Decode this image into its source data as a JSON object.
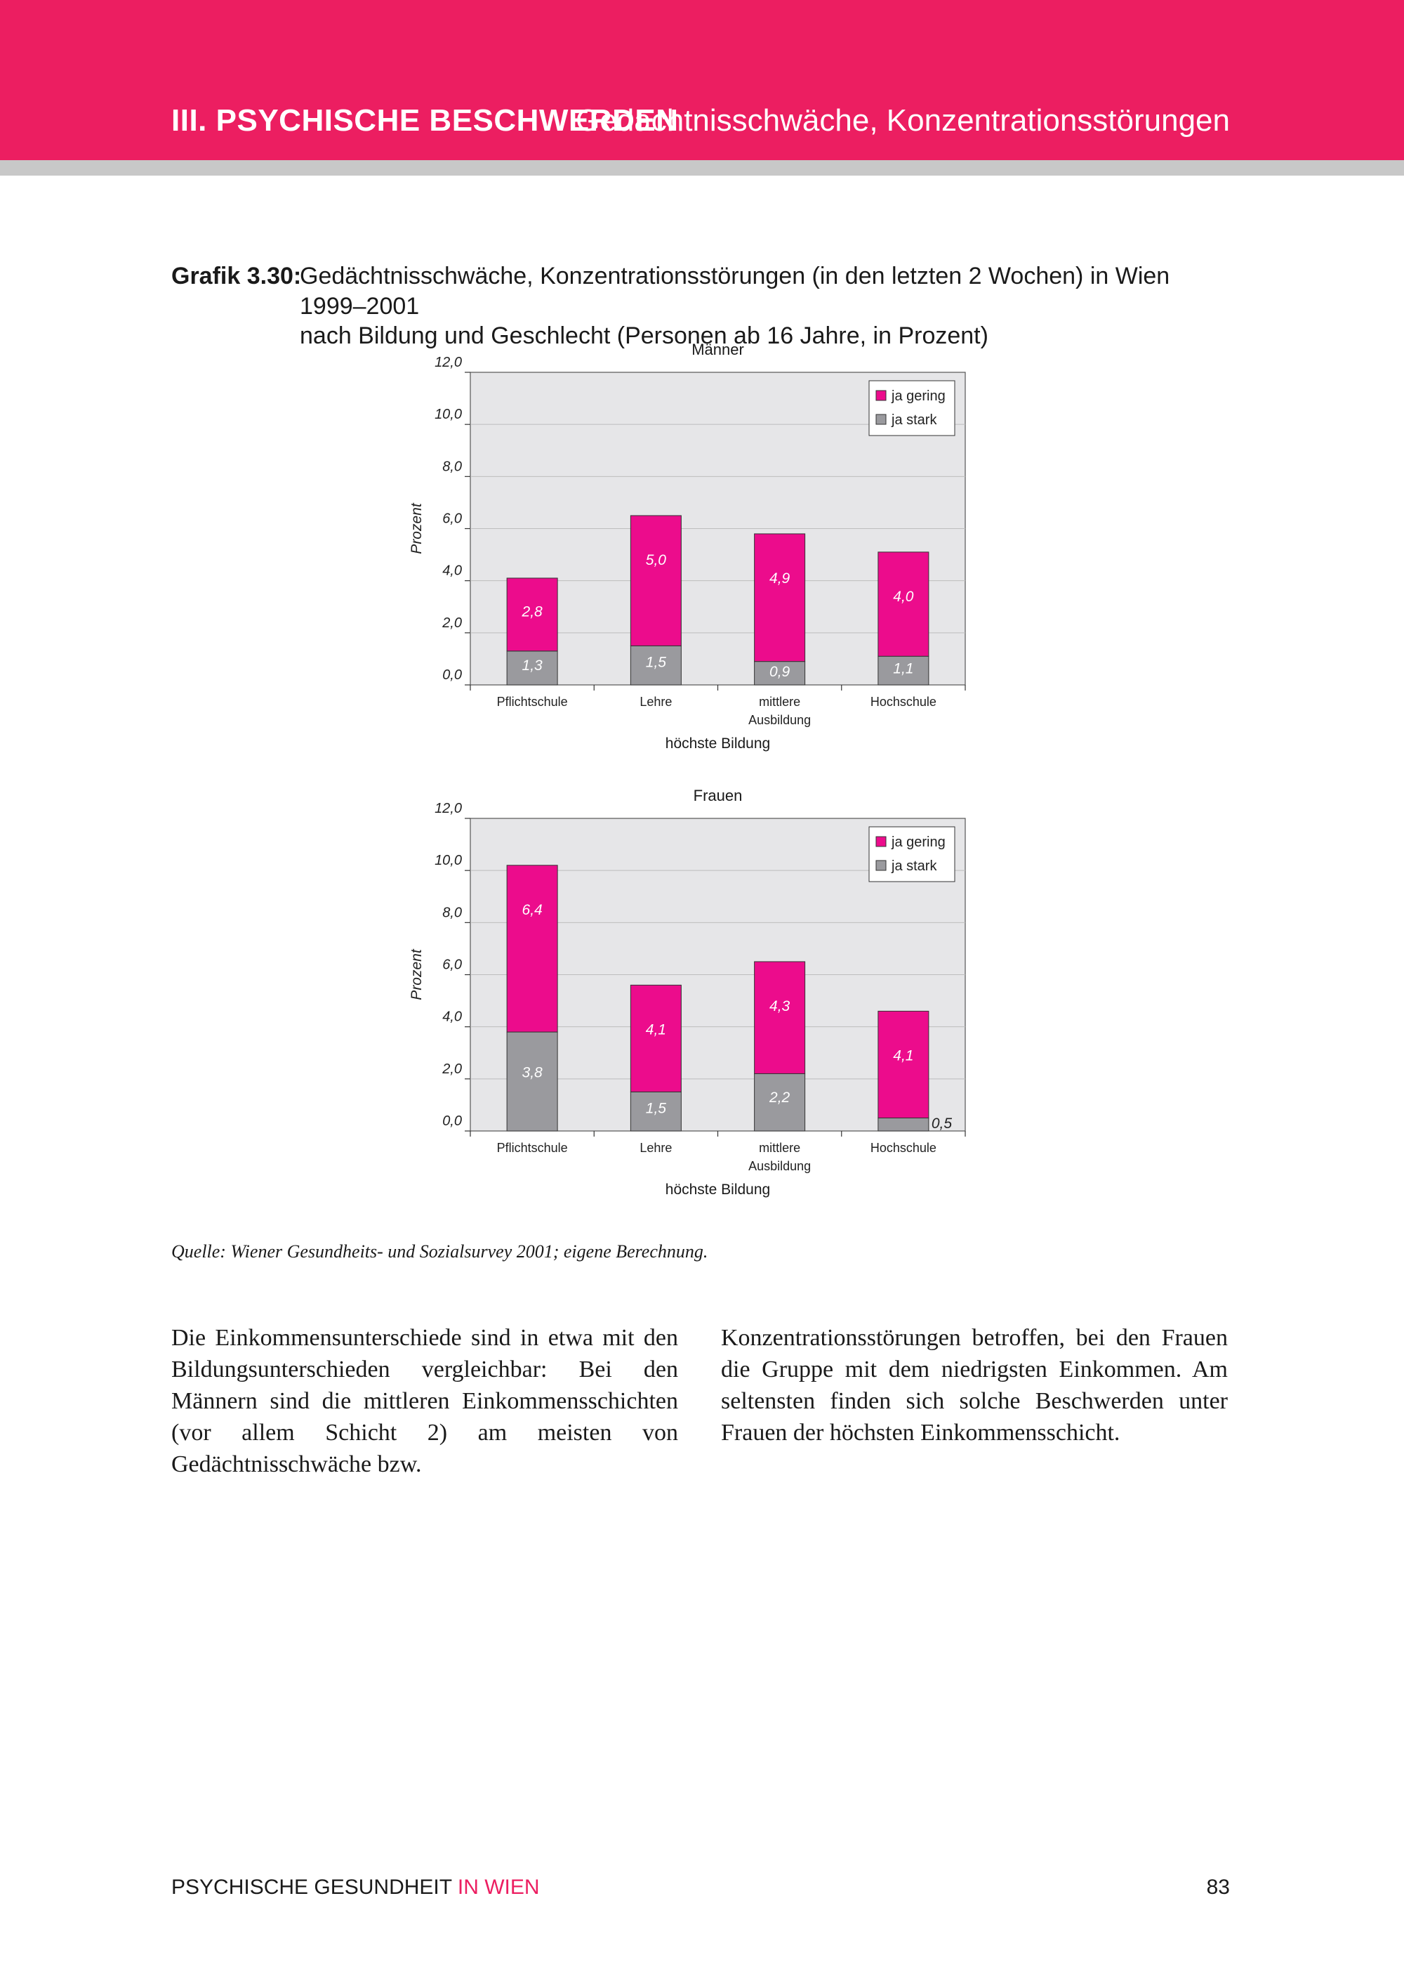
{
  "header": {
    "section": "III. PSYCHISCHE BESCHWERDEN",
    "topic": "Gedächtnisschwäche, Konzentrationsstörungen"
  },
  "figure": {
    "label": "Grafik 3.30:",
    "title_line1": "Gedächtnisschwäche, Konzentrationsstörungen (in den letzten 2 Wochen) in Wien 1999–2001",
    "title_line2": "nach Bildung und Geschlecht (Personen ab 16 Jahre, in Prozent)"
  },
  "colors": {
    "brand": "#ec1e61",
    "bar_gering": "#ec0c8c",
    "bar_stark": "#9a9a9e",
    "plot_bg": "#e6e6e8"
  },
  "chart_data": [
    {
      "type": "bar",
      "stacked": true,
      "title": "Männer",
      "xlabel": "höchste Bildung",
      "ylabel": "Prozent",
      "ylim": [
        0,
        12
      ],
      "yticks": [
        "0,0",
        "2,0",
        "4,0",
        "6,0",
        "8,0",
        "10,0",
        "12,0"
      ],
      "categories": [
        "Pflichtschule",
        "Lehre",
        "mittlere Ausbildung",
        "Hochschule"
      ],
      "series": [
        {
          "name": "ja stark",
          "values": [
            1.3,
            1.5,
            0.9,
            1.1
          ],
          "labels": [
            "1,3",
            "1,5",
            "0,9",
            "1,1"
          ]
        },
        {
          "name": "ja gering",
          "values": [
            2.8,
            5.0,
            4.9,
            4.0
          ],
          "labels": [
            "2,8",
            "5,0",
            "4,9",
            "4,0"
          ]
        }
      ],
      "legend": [
        "ja gering",
        "ja stark"
      ],
      "legend_position": "top-right",
      "grid": true
    },
    {
      "type": "bar",
      "stacked": true,
      "title": "Frauen",
      "xlabel": "höchste Bildung",
      "ylabel": "Prozent",
      "ylim": [
        0,
        12
      ],
      "yticks": [
        "0,0",
        "2,0",
        "4,0",
        "6,0",
        "8,0",
        "10,0",
        "12,0"
      ],
      "categories": [
        "Pflichtschule",
        "Lehre",
        "mittlere Ausbildung",
        "Hochschule"
      ],
      "series": [
        {
          "name": "ja stark",
          "values": [
            3.8,
            1.5,
            2.2,
            0.5
          ],
          "labels": [
            "3,8",
            "1,5",
            "2,2",
            "0,5"
          ]
        },
        {
          "name": "ja gering",
          "values": [
            6.4,
            4.1,
            4.3,
            4.1
          ],
          "labels": [
            "6,4",
            "4,1",
            "4,3",
            "4,1"
          ]
        }
      ],
      "legend": [
        "ja gering",
        "ja stark"
      ],
      "legend_position": "top-right",
      "grid": true
    }
  ],
  "source": "Quelle:  Wiener Gesundheits- und Sozialsurvey 2001; eigene Berechnung.",
  "body": {
    "left": "Die Einkommensunterschiede sind in etwa mit den Bildungsunterschieden vergleichbar: Bei den Männern sind die mittleren Einkommensschichten (vor allem Schicht 2) am meisten von Gedächtnisschwäche bzw.",
    "right": "Konzentrationsstörungen betroffen, bei den Frauen die Gruppe mit dem niedrigsten Einkommen. Am seltensten finden sich solche Beschwerden unter Frauen der höchsten Einkommensschicht."
  },
  "footer": {
    "left_main": "PSYCHISCHE GESUNDHEIT ",
    "left_accent": "IN WIEN",
    "page_number": "83"
  }
}
